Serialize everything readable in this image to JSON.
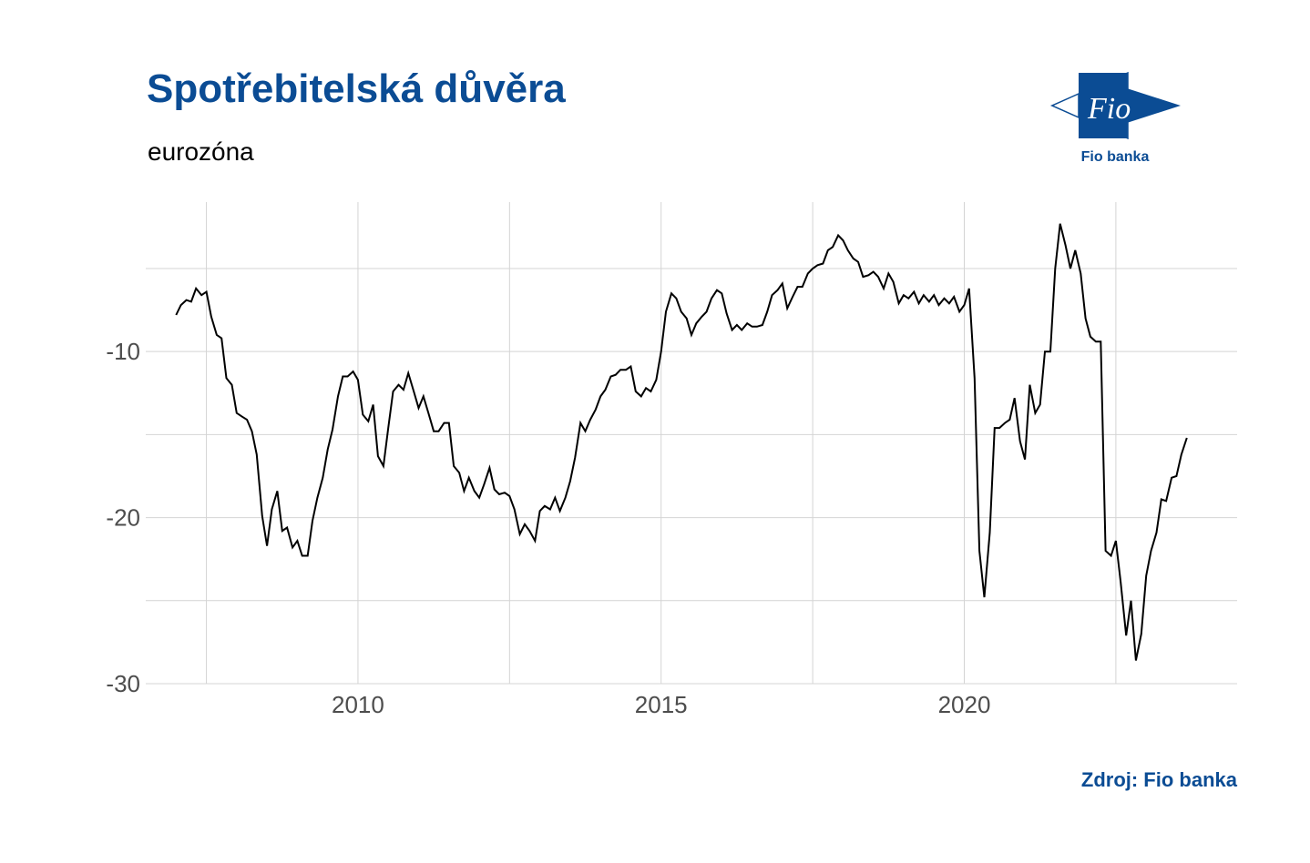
{
  "header": {
    "title": "Spotřebitelská důvěra",
    "subtitle": "eurozóna"
  },
  "logo": {
    "mark_text": "Fio",
    "caption": "Fio banka",
    "color": "#0B4C94"
  },
  "footer": {
    "source": "Zdroj: Fio banka"
  },
  "colors": {
    "brand": "#0B4C94",
    "line": "#000000",
    "grid": "#d4d4d4",
    "tick_text": "#4d4d4d"
  },
  "chart_data": {
    "type": "line",
    "title": "Spotřebitelská důvěra",
    "subtitle": "eurozóna",
    "xlabel": "",
    "ylabel": "",
    "xlim": [
      2006.5,
      2024.5
    ],
    "ylim": [
      -30,
      -1
    ],
    "x_ticks": [
      2010,
      2015,
      2020
    ],
    "y_ticks": [
      -30,
      -20,
      -10
    ],
    "grid": true,
    "legend": "none",
    "series": [
      {
        "values": [
          [
            2007.0,
            -7.8
          ],
          [
            2007.08,
            -7.2
          ],
          [
            2007.17,
            -6.9
          ],
          [
            2007.25,
            -7.0
          ],
          [
            2007.33,
            -6.2
          ],
          [
            2007.42,
            -6.6
          ],
          [
            2007.5,
            -6.4
          ],
          [
            2007.58,
            -7.9
          ],
          [
            2007.67,
            -9.0
          ],
          [
            2007.75,
            -9.2
          ],
          [
            2007.83,
            -11.6
          ],
          [
            2007.92,
            -12.0
          ],
          [
            2008.0,
            -13.7
          ],
          [
            2008.08,
            -13.9
          ],
          [
            2008.17,
            -14.1
          ],
          [
            2008.25,
            -14.8
          ],
          [
            2008.33,
            -16.2
          ],
          [
            2008.42,
            -19.9
          ],
          [
            2008.5,
            -21.7
          ],
          [
            2008.58,
            -19.5
          ],
          [
            2008.67,
            -18.4
          ],
          [
            2008.75,
            -20.8
          ],
          [
            2008.83,
            -20.6
          ],
          [
            2008.92,
            -21.8
          ],
          [
            2009.0,
            -21.4
          ],
          [
            2009.08,
            -22.3
          ],
          [
            2009.17,
            -22.3
          ],
          [
            2009.25,
            -20.2
          ],
          [
            2009.33,
            -18.8
          ],
          [
            2009.42,
            -17.6
          ],
          [
            2009.5,
            -15.9
          ],
          [
            2009.58,
            -14.7
          ],
          [
            2009.67,
            -12.7
          ],
          [
            2009.75,
            -11.5
          ],
          [
            2009.83,
            -11.5
          ],
          [
            2009.92,
            -11.2
          ],
          [
            2010.0,
            -11.7
          ],
          [
            2010.08,
            -13.8
          ],
          [
            2010.17,
            -14.2
          ],
          [
            2010.25,
            -13.2
          ],
          [
            2010.33,
            -16.3
          ],
          [
            2010.42,
            -16.9
          ],
          [
            2010.5,
            -14.6
          ],
          [
            2010.58,
            -12.4
          ],
          [
            2010.67,
            -12.0
          ],
          [
            2010.75,
            -12.3
          ],
          [
            2010.83,
            -11.3
          ],
          [
            2010.92,
            -12.4
          ],
          [
            2011.0,
            -13.4
          ],
          [
            2011.08,
            -12.7
          ],
          [
            2011.17,
            -13.8
          ],
          [
            2011.25,
            -14.8
          ],
          [
            2011.33,
            -14.8
          ],
          [
            2011.42,
            -14.3
          ],
          [
            2011.5,
            -14.3
          ],
          [
            2011.58,
            -16.9
          ],
          [
            2011.67,
            -17.3
          ],
          [
            2011.75,
            -18.4
          ],
          [
            2011.83,
            -17.6
          ],
          [
            2011.92,
            -18.4
          ],
          [
            2012.0,
            -18.8
          ],
          [
            2012.08,
            -18.0
          ],
          [
            2012.17,
            -17.0
          ],
          [
            2012.25,
            -18.3
          ],
          [
            2012.33,
            -18.6
          ],
          [
            2012.42,
            -18.5
          ],
          [
            2012.5,
            -18.7
          ],
          [
            2012.58,
            -19.5
          ],
          [
            2012.67,
            -21.0
          ],
          [
            2012.75,
            -20.4
          ],
          [
            2012.83,
            -20.8
          ],
          [
            2012.92,
            -21.4
          ],
          [
            2013.0,
            -19.6
          ],
          [
            2013.08,
            -19.3
          ],
          [
            2013.17,
            -19.5
          ],
          [
            2013.25,
            -18.8
          ],
          [
            2013.33,
            -19.6
          ],
          [
            2013.42,
            -18.8
          ],
          [
            2013.5,
            -17.8
          ],
          [
            2013.58,
            -16.4
          ],
          [
            2013.67,
            -14.3
          ],
          [
            2013.75,
            -14.8
          ],
          [
            2013.83,
            -14.1
          ],
          [
            2013.92,
            -13.5
          ],
          [
            2014.0,
            -12.7
          ],
          [
            2014.08,
            -12.3
          ],
          [
            2014.17,
            -11.5
          ],
          [
            2014.25,
            -11.4
          ],
          [
            2014.33,
            -11.1
          ],
          [
            2014.42,
            -11.1
          ],
          [
            2014.5,
            -10.9
          ],
          [
            2014.58,
            -12.4
          ],
          [
            2014.67,
            -12.7
          ],
          [
            2014.75,
            -12.2
          ],
          [
            2014.83,
            -12.4
          ],
          [
            2014.92,
            -11.7
          ],
          [
            2015.0,
            -10.0
          ],
          [
            2015.08,
            -7.6
          ],
          [
            2015.17,
            -6.5
          ],
          [
            2015.25,
            -6.8
          ],
          [
            2015.33,
            -7.6
          ],
          [
            2015.42,
            -8.0
          ],
          [
            2015.5,
            -9.0
          ],
          [
            2015.58,
            -8.3
          ],
          [
            2015.67,
            -7.9
          ],
          [
            2015.75,
            -7.6
          ],
          [
            2015.83,
            -6.8
          ],
          [
            2015.92,
            -6.3
          ],
          [
            2016.0,
            -6.5
          ],
          [
            2016.08,
            -7.7
          ],
          [
            2016.17,
            -8.7
          ],
          [
            2016.25,
            -8.4
          ],
          [
            2016.33,
            -8.7
          ],
          [
            2016.42,
            -8.3
          ],
          [
            2016.5,
            -8.5
          ],
          [
            2016.58,
            -8.5
          ],
          [
            2016.67,
            -8.4
          ],
          [
            2016.75,
            -7.6
          ],
          [
            2016.83,
            -6.6
          ],
          [
            2016.92,
            -6.3
          ],
          [
            2017.0,
            -5.9
          ],
          [
            2017.08,
            -7.4
          ],
          [
            2017.17,
            -6.7
          ],
          [
            2017.25,
            -6.1
          ],
          [
            2017.33,
            -6.1
          ],
          [
            2017.42,
            -5.3
          ],
          [
            2017.5,
            -5.0
          ],
          [
            2017.58,
            -4.8
          ],
          [
            2017.67,
            -4.7
          ],
          [
            2017.75,
            -3.9
          ],
          [
            2017.83,
            -3.7
          ],
          [
            2017.92,
            -3.0
          ],
          [
            2018.0,
            -3.3
          ],
          [
            2018.08,
            -3.9
          ],
          [
            2018.17,
            -4.4
          ],
          [
            2018.25,
            -4.6
          ],
          [
            2018.33,
            -5.5
          ],
          [
            2018.42,
            -5.4
          ],
          [
            2018.5,
            -5.2
          ],
          [
            2018.58,
            -5.5
          ],
          [
            2018.67,
            -6.2
          ],
          [
            2018.75,
            -5.3
          ],
          [
            2018.83,
            -5.8
          ],
          [
            2018.92,
            -7.1
          ],
          [
            2019.0,
            -6.6
          ],
          [
            2019.08,
            -6.8
          ],
          [
            2019.17,
            -6.4
          ],
          [
            2019.25,
            -7.1
          ],
          [
            2019.33,
            -6.6
          ],
          [
            2019.42,
            -7.0
          ],
          [
            2019.5,
            -6.6
          ],
          [
            2019.58,
            -7.2
          ],
          [
            2019.67,
            -6.8
          ],
          [
            2019.75,
            -7.1
          ],
          [
            2019.83,
            -6.7
          ],
          [
            2019.92,
            -7.6
          ],
          [
            2020.0,
            -7.2
          ],
          [
            2020.08,
            -6.2
          ],
          [
            2020.17,
            -11.6
          ],
          [
            2020.25,
            -22.0
          ],
          [
            2020.33,
            -24.8
          ],
          [
            2020.42,
            -20.9
          ],
          [
            2020.5,
            -14.6
          ],
          [
            2020.58,
            -14.6
          ],
          [
            2020.67,
            -14.3
          ],
          [
            2020.75,
            -14.1
          ],
          [
            2020.83,
            -12.8
          ],
          [
            2020.92,
            -15.4
          ],
          [
            2021.0,
            -16.5
          ],
          [
            2021.08,
            -12.0
          ],
          [
            2021.17,
            -13.7
          ],
          [
            2021.25,
            -13.2
          ],
          [
            2021.33,
            -10.0
          ],
          [
            2021.42,
            -10.0
          ],
          [
            2021.5,
            -5.0
          ],
          [
            2021.58,
            -2.3
          ],
          [
            2021.67,
            -3.6
          ],
          [
            2021.75,
            -5.0
          ],
          [
            2021.83,
            -3.9
          ],
          [
            2021.92,
            -5.3
          ],
          [
            2022.0,
            -8.0
          ],
          [
            2022.08,
            -9.1
          ],
          [
            2022.17,
            -9.4
          ],
          [
            2022.25,
            -9.4
          ],
          [
            2022.33,
            -22.0
          ],
          [
            2022.42,
            -22.3
          ],
          [
            2022.5,
            -21.4
          ],
          [
            2022.58,
            -23.9
          ],
          [
            2022.67,
            -27.1
          ],
          [
            2022.75,
            -25.0
          ],
          [
            2022.83,
            -28.6
          ],
          [
            2022.92,
            -27.0
          ],
          [
            2023.0,
            -23.5
          ],
          [
            2023.08,
            -22.0
          ],
          [
            2023.17,
            -20.9
          ],
          [
            2023.25,
            -18.9
          ],
          [
            2023.33,
            -19.0
          ],
          [
            2023.42,
            -17.6
          ],
          [
            2023.5,
            -17.5
          ],
          [
            2023.58,
            -16.2
          ],
          [
            2023.67,
            -15.2
          ]
        ]
      }
    ]
  }
}
